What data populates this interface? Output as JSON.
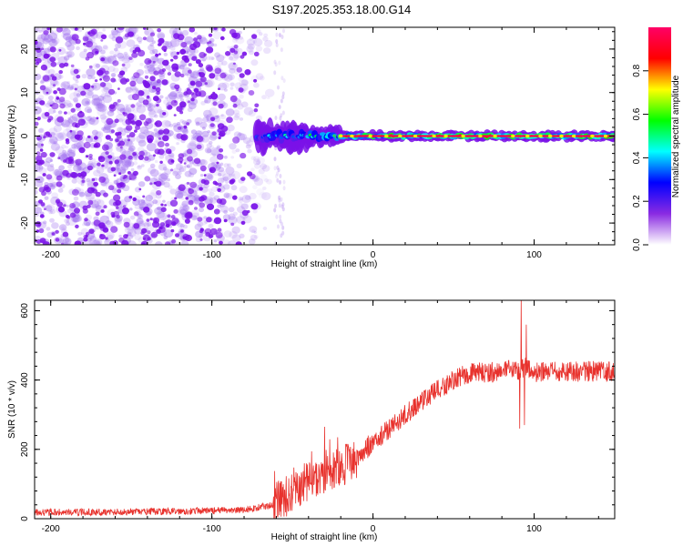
{
  "title": "S197.2025.353.18.00.G14",
  "chart_data": [
    {
      "type": "heatmap",
      "name": "spectrogram",
      "xlabel": "Height of straight line (km)",
      "ylabel": "Frequency (Hz)",
      "xlim": [
        -210,
        150
      ],
      "ylim": [
        -25,
        25
      ],
      "xticks": [
        -200,
        -100,
        0,
        100
      ],
      "yticks": [
        -20,
        -10,
        0,
        10,
        20
      ],
      "colorbar": {
        "label": "Normalized spectral amplitude",
        "range": [
          0,
          1
        ],
        "ticks": [
          "0.0",
          "0.2",
          "0.4",
          "0.6",
          "0.8"
        ],
        "tick_values": [
          0,
          0.2,
          0.4,
          0.6,
          0.8
        ],
        "colors": [
          "#ffffff",
          "#8a2be2",
          "#0000ff",
          "#00ffff",
          "#00ff00",
          "#ffff00",
          "#ff0000",
          "#ff0066"
        ]
      },
      "noise_region_end_km": -72,
      "signal_line_frequency_hz": 0,
      "signal_segments": [
        {
          "x_start": -72,
          "x_end": -40,
          "amplitude": 0.5,
          "spread_hz": 3
        },
        {
          "x_start": -40,
          "x_end": -20,
          "amplitude": 0.7,
          "spread_hz": 2
        },
        {
          "x_start": -20,
          "x_end": 150,
          "amplitude": 0.95,
          "spread_hz": 1
        }
      ]
    },
    {
      "type": "line",
      "name": "snr",
      "xlabel": "Height of straight line (km)",
      "ylabel": "SNR (10 * v/v)",
      "xlim": [
        -210,
        150
      ],
      "ylim": [
        0,
        630
      ],
      "xticks": [
        -200,
        -100,
        0,
        100
      ],
      "yticks": [
        0,
        200,
        400,
        600
      ],
      "color": "#e8322d",
      "trend": {
        "x": [
          -210,
          -140,
          -80,
          -62,
          -50,
          -30,
          -10,
          10,
          30,
          50,
          60,
          80,
          90,
          95,
          100,
          120,
          150
        ],
        "y": [
          18,
          20,
          25,
          40,
          75,
          130,
          175,
          260,
          340,
          400,
          420,
          425,
          430,
          440,
          420,
          425,
          425
        ]
      },
      "noise_amplitude": [
        {
          "x": [
            -210,
            -62
          ],
          "amp": 10
        },
        {
          "x": [
            -62,
            -10
          ],
          "amp": 60
        },
        {
          "x": [
            -10,
            150
          ],
          "amp": 30
        }
      ],
      "spikes": [
        {
          "x": -30,
          "y": 265
        },
        {
          "x": -22,
          "y": 235
        },
        {
          "x": -3,
          "y": 240
        },
        {
          "x": 91,
          "y": 260
        },
        {
          "x": 92,
          "y": 630
        },
        {
          "x": 94,
          "y": 270
        },
        {
          "x": 95,
          "y": 560
        }
      ]
    }
  ]
}
